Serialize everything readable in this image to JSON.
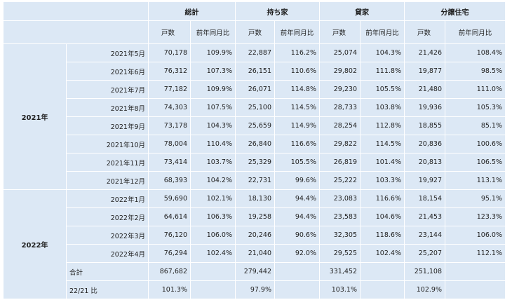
{
  "groups": [
    "総計",
    "持ち家",
    "貸家",
    "分譲住宅"
  ],
  "sub_headers": {
    "count": "戸数",
    "yoy": "前年同月比"
  },
  "years": [
    "2021年",
    "2022年"
  ],
  "rows": [
    {
      "month": "2021年5月",
      "vals": [
        "70,178",
        "109.9%",
        "22,887",
        "116.2%",
        "25,074",
        "104.3%",
        "21,426",
        "108.4%"
      ]
    },
    {
      "month": "2021年6月",
      "vals": [
        "76,312",
        "107.3%",
        "26,151",
        "110.6%",
        "29,802",
        "111.8%",
        "19,877",
        "98.5%"
      ]
    },
    {
      "month": "2021年7月",
      "vals": [
        "77,182",
        "109.9%",
        "26,071",
        "114.8%",
        "29,230",
        "105.5%",
        "21,480",
        "111.0%"
      ]
    },
    {
      "month": "2021年8月",
      "vals": [
        "74,303",
        "107.5%",
        "25,100",
        "114.5%",
        "28,733",
        "103.8%",
        "19,936",
        "105.3%"
      ]
    },
    {
      "month": "2021年9月",
      "vals": [
        "73,178",
        "104.3%",
        "25,659",
        "114.9%",
        "28,254",
        "112.8%",
        "18,855",
        "85.1%"
      ]
    },
    {
      "month": "2021年10月",
      "vals": [
        "78,004",
        "110.4%",
        "26,840",
        "116.6%",
        "29,822",
        "114.5%",
        "20,836",
        "100.6%"
      ]
    },
    {
      "month": "2021年11月",
      "vals": [
        "73,414",
        "103.7%",
        "25,329",
        "105.5%",
        "26,819",
        "101.4%",
        "20,813",
        "106.5%"
      ]
    },
    {
      "month": "2021年12月",
      "vals": [
        "68,393",
        "104.2%",
        "22,731",
        "99.6%",
        "25,222",
        "103.3%",
        "19,927",
        "113.1%"
      ]
    },
    {
      "month": "2022年1月",
      "vals": [
        "59,690",
        "102.1%",
        "18,130",
        "94.4%",
        "23,083",
        "116.6%",
        "18,154",
        "95.1%"
      ]
    },
    {
      "month": "2022年2月",
      "vals": [
        "64,614",
        "106.3%",
        "19,258",
        "94.4%",
        "23,583",
        "104.6%",
        "21,453",
        "123.3%"
      ]
    },
    {
      "month": "2022年3月",
      "vals": [
        "76,120",
        "106.0%",
        "20,246",
        "90.6%",
        "32,305",
        "118.6%",
        "23,144",
        "106.0%"
      ]
    },
    {
      "month": "2022年4月",
      "vals": [
        "76,294",
        "102.4%",
        "21,040",
        "92.0%",
        "29,525",
        "102.4%",
        "25,207",
        "112.1%"
      ]
    }
  ],
  "total": {
    "label": "合計",
    "vals": [
      "867,682",
      "",
      "279,442",
      "",
      "331,452",
      "",
      "251,108",
      ""
    ]
  },
  "ratio": {
    "label": "22/21 比",
    "vals": [
      "101.3%",
      "",
      "97.9%",
      "",
      "103.1%",
      "",
      "102.9%",
      ""
    ]
  }
}
